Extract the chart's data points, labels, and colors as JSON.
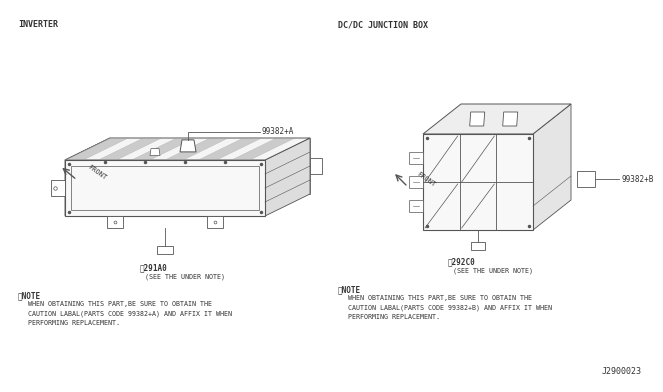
{
  "bg_color": "#ffffff",
  "line_color": "#555555",
  "text_color": "#333333",
  "title_left": "INVERTER",
  "title_right": "DC/DC JUNCTION BOX",
  "part_left": "291A0",
  "part_right": "292C0",
  "label_left": "99382+A",
  "label_right": "99382+B",
  "see_note": "(SEE THE UNDER NOTE)",
  "note_symbol": "※NOTE",
  "note_text_left": "WHEN OBTAINING THIS PART,BE SURE TO OBTAIN THE\nCAUTION LABAL(PARTS CODE 99382+A) AND AFFIX IT WHEN\nPERFORMING REPLACEMENT.",
  "note_text_right": "WHEN OBTAINING THIS PART,BE SURE TO OBTAIN THE\nCAUTION LABAL(PARTS CODE 99382+B) AND AFFIX IT WHEN\nPERFORMING REPLACEMENT.",
  "doc_number": "J2900023",
  "front_label": "FRONT"
}
